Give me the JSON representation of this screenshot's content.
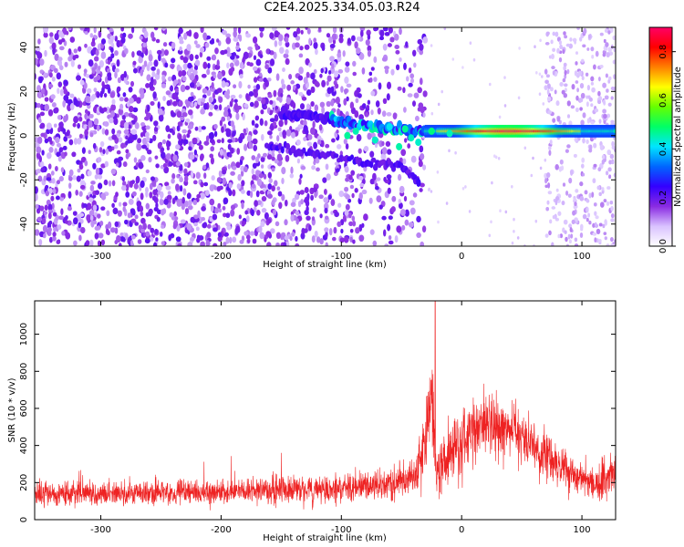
{
  "figure_title": "C2E4.2025.334.05.03.R24",
  "colors": {
    "axis": "#000000",
    "snr_line": "#ee2222",
    "background": "#ffffff"
  },
  "chart_data": [
    {
      "type": "heatmap",
      "name": "spectrogram",
      "xlabel": "Height of straight line (km)",
      "ylabel": "Frequency (Hz)",
      "xlim": [
        -355,
        128
      ],
      "ylim": [
        -50,
        49
      ],
      "xticks": [
        -300,
        -200,
        -100,
        0,
        100
      ],
      "yticks": [
        -40,
        -20,
        0,
        20,
        40
      ],
      "xtick_labels": [
        "-300",
        "-200",
        "-100",
        "0",
        "100"
      ],
      "ytick_labels": [
        "-40",
        "-20",
        "0",
        "20",
        "40"
      ],
      "colorbar": {
        "label": "Normalized spectral amplitude",
        "range": [
          0.0,
          0.9
        ],
        "ticks": [
          0.0,
          0.2,
          0.4,
          0.6,
          0.8
        ],
        "tick_labels": [
          "0.0",
          "0.2",
          "0.4",
          "0.6",
          "0.8"
        ],
        "colormap": [
          "#ffffff",
          "#d9c2ff",
          "#8a2be2",
          "#3300ff",
          "#0066ff",
          "#00e5ff",
          "#00ff66",
          "#66ff00",
          "#ffff00",
          "#ff8000",
          "#ff0000",
          "#ff0066"
        ]
      },
      "features": {
        "dense_noise_region_km": [
          -355,
          -30
        ],
        "gap_region_km": [
          -28,
          70
        ],
        "sparse_noise_region_km": [
          70,
          128
        ],
        "signal_track": {
          "description": "converging band from broad noise to a strong carrier",
          "points": [
            [
              -150,
              10
            ],
            [
              -120,
              9
            ],
            [
              -100,
              6
            ],
            [
              -80,
              4
            ],
            [
              -60,
              3
            ],
            [
              -40,
              2
            ],
            [
              -30,
              2
            ],
            [
              0,
              2
            ],
            [
              60,
              2
            ],
            [
              128,
              2
            ]
          ],
          "peak_amplitude_region_km": [
            -20,
            100
          ],
          "peak_amplitude": 0.9
        },
        "descending_branch": [
          [
            -160,
            -5
          ],
          [
            -120,
            -8
          ],
          [
            -80,
            -12
          ],
          [
            -50,
            -14
          ],
          [
            -35,
            -22
          ]
        ]
      }
    },
    {
      "type": "line",
      "name": "snr",
      "xlabel": "Height of straight line (km)",
      "ylabel": "SNR (10 * v/v)",
      "xlim": [
        -355,
        128
      ],
      "ylim": [
        0,
        1180
      ],
      "xticks": [
        -300,
        -200,
        -100,
        0,
        100
      ],
      "yticks": [
        0,
        200,
        400,
        600,
        800,
        1000
      ],
      "xtick_labels": [
        "-300",
        "-200",
        "-100",
        "0",
        "100"
      ],
      "ytick_labels": [
        "0",
        "200",
        "400",
        "600",
        "800",
        "1000"
      ],
      "envelope_km": [
        -355,
        -300,
        -200,
        -100,
        -60,
        -40,
        -30,
        -25,
        -22,
        -18,
        -10,
        0,
        10,
        30,
        50,
        80,
        110,
        128
      ],
      "envelope_snr_mean": [
        140,
        140,
        150,
        170,
        190,
        240,
        420,
        700,
        300,
        250,
        380,
        420,
        480,
        520,
        450,
        300,
        180,
        260
      ],
      "envelope_snr_spread": [
        110,
        110,
        110,
        130,
        150,
        180,
        350,
        450,
        250,
        300,
        320,
        330,
        320,
        300,
        260,
        200,
        140,
        200
      ],
      "annotations": {
        "max_spike_snr": 1180,
        "max_spike_km": -22
      }
    }
  ]
}
